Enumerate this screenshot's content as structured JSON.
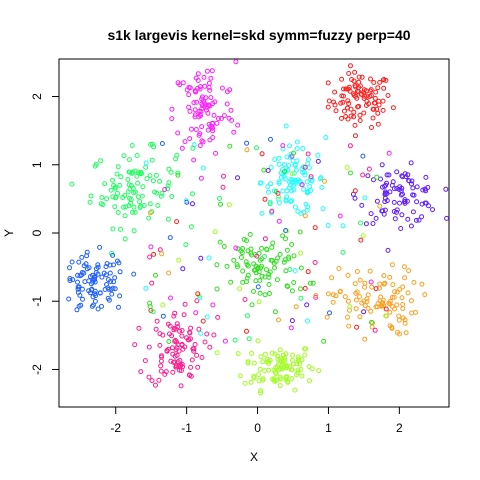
{
  "chart_data": {
    "type": "scatter",
    "title": "s1k largevis kernel=skd symm=fuzzy perp=40",
    "xlabel": "X",
    "ylabel": "Y",
    "xlim": [
      -2.8,
      2.7
    ],
    "ylim": [
      -2.55,
      2.55
    ],
    "x_ticks": [
      -2,
      -1,
      0,
      1,
      2
    ],
    "y_ticks": [
      -2,
      -1,
      0,
      1,
      2
    ],
    "x_tick_labels": [
      "-2",
      "-1",
      "0",
      "1",
      "2"
    ],
    "y_tick_labels": [
      "-2",
      "-1",
      "0",
      "1",
      "2"
    ],
    "grid": false,
    "legend": "none",
    "marker": "open-circle",
    "clusters": [
      {
        "color": "#FF2020",
        "center": [
          1.45,
          1.95
        ],
        "spread": [
          0.22,
          0.2
        ],
        "count": 95
      },
      {
        "color": "#A0FF20",
        "center": [
          0.3,
          -1.95
        ],
        "spread": [
          0.25,
          0.17
        ],
        "count": 95
      },
      {
        "color": "#20FF60",
        "center": [
          -1.75,
          0.65
        ],
        "spread": [
          0.3,
          0.28
        ],
        "count": 100
      },
      {
        "color": "#20FFFF",
        "center": [
          0.5,
          0.75
        ],
        "spread": [
          0.22,
          0.25
        ],
        "count": 95
      },
      {
        "color": "#2060FF",
        "center": [
          -2.3,
          -0.75
        ],
        "spread": [
          0.23,
          0.22
        ],
        "count": 95
      },
      {
        "color": "#6020FF",
        "center": [
          2.0,
          0.55
        ],
        "spread": [
          0.28,
          0.2
        ],
        "count": 90
      },
      {
        "color": "#FF20FF",
        "center": [
          -0.75,
          1.8
        ],
        "spread": [
          0.22,
          0.35
        ],
        "count": 95
      },
      {
        "color": "#FF2090",
        "center": [
          -1.15,
          -1.7
        ],
        "spread": [
          0.2,
          0.28
        ],
        "count": 95
      },
      {
        "color": "#FFA020",
        "center": [
          1.65,
          -1.0
        ],
        "spread": [
          0.3,
          0.25
        ],
        "count": 95
      },
      {
        "color": "#30E020",
        "center": [
          0.1,
          -0.5
        ],
        "spread": [
          0.3,
          0.25
        ],
        "count": 90
      }
    ],
    "scatter_noise": {
      "count": 150,
      "xrange": [
        -1.6,
        1.9
      ],
      "yrange": [
        -1.6,
        1.4
      ]
    }
  }
}
